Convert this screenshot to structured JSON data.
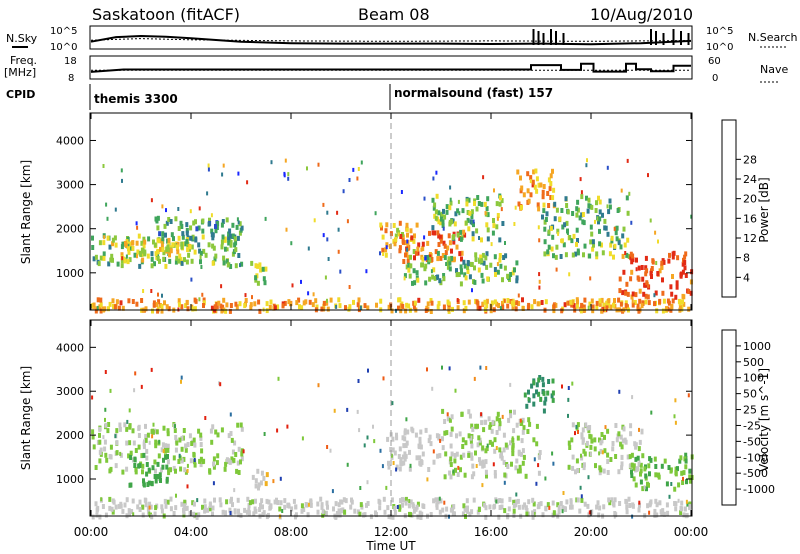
{
  "header": {
    "station": "Saskatoon (fitACF)",
    "beam": "Beam 08",
    "date": "10/Aug/2010"
  },
  "top_panels": {
    "nsky_label": "N.Sky",
    "nsky_ticks": [
      "10^5",
      "10^0"
    ],
    "nsearch_label": "N.Search",
    "nsearch_ticks": [
      "10^5",
      "10^0"
    ],
    "freq_label_line1": "Freq.",
    "freq_label_line2": "[MHz]",
    "freq_ticks": [
      "18",
      "8"
    ],
    "nave_label": "Nave",
    "nave_ticks": [
      "60",
      "0"
    ],
    "cpid_label": "CPID",
    "cpid_modes": [
      {
        "text": "themis 3300",
        "start_hour": 0
      },
      {
        "text": "normalsound (fast) 157",
        "start_hour": 12
      }
    ]
  },
  "x_axis": {
    "label": "Time UT",
    "ticks": [
      "00:00",
      "04:00",
      "08:00",
      "12:00",
      "16:00",
      "20:00",
      "00:00"
    ]
  },
  "power_panel": {
    "ylabel": "Slant Range [km]",
    "yticks": [
      "1000",
      "2000",
      "3000",
      "4000"
    ],
    "colorbar_label": "Power [dB]",
    "colorbar_ticks": [
      "4",
      "8",
      "12",
      "16",
      "20",
      "24",
      "28"
    ],
    "colors": [
      "#1a28ff",
      "#2a4fc8",
      "#2f7a8f",
      "#3fa55c",
      "#8cc83c",
      "#f0dc2a",
      "#f5a623",
      "#ef6a1a",
      "#e22a14"
    ]
  },
  "velocity_panel": {
    "ylabel": "Slant Range [km]",
    "yticks": [
      "1000",
      "2000",
      "3000",
      "4000"
    ],
    "colorbar_label": "Velocity [m s^-1]",
    "colorbar_ticks": [
      "1000",
      "500",
      "100",
      "50",
      "25",
      "-25",
      "-50",
      "-100",
      "-500",
      "-1000"
    ],
    "colors": [
      "#1f3fb0",
      "#2a6ea0",
      "#2e8b6a",
      "#3fa548",
      "#7ec83a",
      "#c8c8c8",
      "#f0b020",
      "#f28a1a",
      "#ee5a14",
      "#e2200e"
    ]
  },
  "chart_data": [
    {
      "type": "line",
      "title": "N.Sky / N.Search",
      "x_range_hours": [
        0,
        24
      ],
      "ylim_log10": [
        0,
        5
      ],
      "series": [
        {
          "name": "N.Sky",
          "x": [
            0,
            1,
            2,
            3,
            4,
            6,
            8,
            10,
            12,
            14,
            16,
            18,
            20,
            22,
            24
          ],
          "y_log10": [
            1.4,
            2.6,
            2.9,
            2.7,
            2.3,
            1.4,
            1.0,
            0.9,
            0.9,
            0.9,
            0.8,
            0.9,
            0.7,
            1.0,
            1.6
          ]
        },
        {
          "name": "N.Search",
          "x": [
            0,
            2,
            4,
            8,
            12,
            16,
            20,
            24
          ],
          "y_log10": [
            1.8,
            2.2,
            1.9,
            1.6,
            1.5,
            1.6,
            1.5,
            1.7
          ]
        }
      ]
    },
    {
      "type": "line",
      "title": "Freq. / Nave",
      "x_range_hours": [
        0,
        24
      ],
      "series": [
        {
          "name": "Freq. [MHz]",
          "ylim": [
            8,
            18
          ],
          "x": [
            0,
            1.3,
            17.6,
            17.6,
            18.8,
            18.8,
            19.6,
            19.6,
            20.1,
            20.1,
            21.4,
            21.4,
            21.8,
            21.8,
            22.4,
            22.4,
            23.3,
            23.3,
            24
          ],
          "y": [
            11,
            12.4,
            12.4,
            15,
            15,
            12.2,
            12.2,
            15.8,
            15.8,
            11.2,
            11.2,
            15.8,
            15.8,
            12.5,
            12.5,
            11.4,
            11.4,
            14.6,
            14.6
          ]
        },
        {
          "name": "Nave",
          "ylim": [
            0,
            60
          ],
          "x": [
            0,
            24
          ],
          "y": [
            24,
            24
          ]
        }
      ]
    },
    {
      "type": "heatmap",
      "title": "Power [dB]",
      "xlabel": "Time UT",
      "ylabel": "Slant Range [km]",
      "x_range_hours": [
        0,
        24
      ],
      "ylim": [
        180,
        4600
      ],
      "value_range": [
        0,
        30
      ],
      "regions": [
        {
          "t": [
            0.0,
            6.0
          ],
          "range_km": [
            1200,
            1900
          ],
          "power_db": 14
        },
        {
          "t": [
            0.8,
            4.0
          ],
          "range_km": [
            1300,
            1800
          ],
          "power_db": 19
        },
        {
          "t": [
            2.5,
            6.0
          ],
          "range_km": [
            1800,
            2300
          ],
          "power_db": 11
        },
        {
          "t": [
            0.0,
            24.0
          ],
          "range_km": [
            180,
            450
          ],
          "power_db": 22
        },
        {
          "t": [
            6.3,
            7.0
          ],
          "range_km": [
            800,
            1300
          ],
          "power_db": 15
        },
        {
          "t": [
            11.5,
            13.0
          ],
          "range_km": [
            1400,
            2200
          ],
          "power_db": 21
        },
        {
          "t": [
            12.2,
            15.0
          ],
          "range_km": [
            1300,
            2000
          ],
          "power_db": 25
        },
        {
          "t": [
            12.5,
            17.0
          ],
          "range_km": [
            800,
            1500
          ],
          "power_db": 13
        },
        {
          "t": [
            13.5,
            16.5
          ],
          "range_km": [
            1800,
            2800
          ],
          "power_db": 14
        },
        {
          "t": [
            17.0,
            18.5
          ],
          "range_km": [
            2500,
            3400
          ],
          "power_db": 22
        },
        {
          "t": [
            18.0,
            21.5
          ],
          "range_km": [
            1400,
            2800
          ],
          "power_db": 13
        },
        {
          "t": [
            21.0,
            24.0
          ],
          "range_km": [
            500,
            1500
          ],
          "power_db": 27
        }
      ]
    },
    {
      "type": "heatmap",
      "title": "Velocity [m s^-1]",
      "xlabel": "Time UT",
      "ylabel": "Slant Range [km]",
      "x_range_hours": [
        0,
        24
      ],
      "ylim": [
        180,
        4600
      ],
      "value_range": [
        -1000,
        1000
      ],
      "regions": [
        {
          "t": [
            0.0,
            6.0
          ],
          "range_km": [
            1200,
            2300
          ],
          "velocity_ms": 0
        },
        {
          "t": [
            1.5,
            3.0
          ],
          "range_km": [
            900,
            1600
          ],
          "velocity_ms": 300
        },
        {
          "t": [
            0.0,
            24.0
          ],
          "range_km": [
            180,
            600
          ],
          "velocity_ms": -60
        },
        {
          "t": [
            6.4,
            7.0
          ],
          "range_km": [
            800,
            1300
          ],
          "velocity_ms": -150
        },
        {
          "t": [
            11.8,
            14.0
          ],
          "range_km": [
            1200,
            2200
          ],
          "velocity_ms": -120
        },
        {
          "t": [
            14.0,
            18.0
          ],
          "range_km": [
            1100,
            2600
          ],
          "velocity_ms": 0
        },
        {
          "t": [
            17.3,
            18.5
          ],
          "range_km": [
            2600,
            3400
          ],
          "velocity_ms": 400
        },
        {
          "t": [
            19.0,
            22.0
          ],
          "range_km": [
            1200,
            2300
          ],
          "velocity_ms": 0
        },
        {
          "t": [
            21.5,
            24.0
          ],
          "range_km": [
            800,
            1600
          ],
          "velocity_ms": 200
        }
      ]
    }
  ]
}
